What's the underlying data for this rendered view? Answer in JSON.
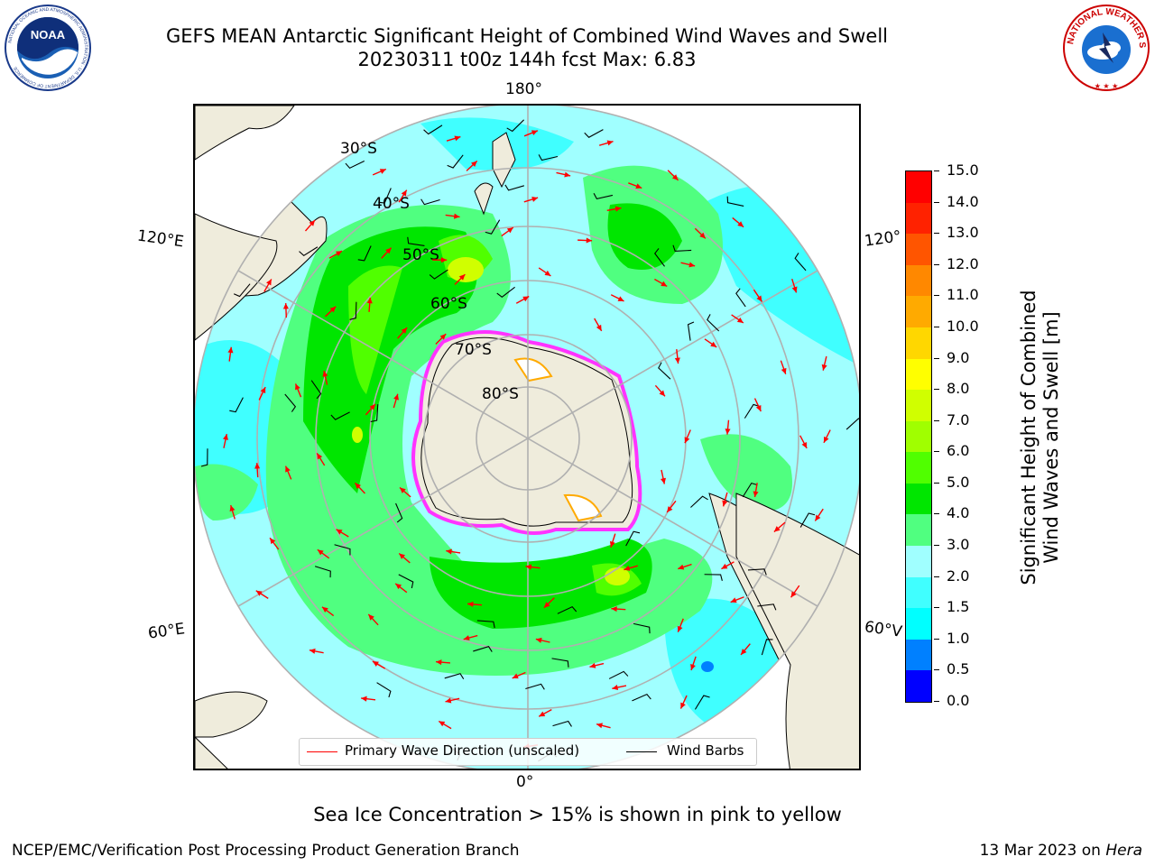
{
  "header": {
    "title_line1": "GEFS MEAN Antarctic Significant Height of Combined Wind Waves and Swell",
    "title_line2": "20230311 t00z 144h fcst   Max: 6.83"
  },
  "logos": {
    "noaa": "NOAA",
    "noaa_ring": "NATIONAL OCEANIC AND ATMOSPHERIC ADMINISTRATION · U.S. DEPARTMENT OF COMMERCE",
    "nws_ring": "NATIONAL WEATHER SERVICE"
  },
  "map": {
    "projection": "south-polar-stereographic",
    "longitude_labels": {
      "top": "180°",
      "bottom": "0°",
      "upper_left": "120°E",
      "upper_right": "120°",
      "lower_left": "60°E",
      "lower_right": "60°V"
    },
    "latitude_labels": [
      "30°S",
      "40°S",
      "50°S",
      "60°S",
      "70°S",
      "80°S"
    ],
    "colors": {
      "land": "#efecdc",
      "antarctica": "#efecdc",
      "gridline": "#b0b0b0",
      "coast": "#000000",
      "sea_ice_edge": "#ff33ff"
    },
    "legend": {
      "wave_label": "Primary Wave Direction (unscaled)",
      "wave_color": "#ff0000",
      "wind_label": "Wind Barbs",
      "wind_color": "#000000"
    }
  },
  "colorbar": {
    "label_line1": "Significant Height of Combined",
    "label_line2": "Wind Waves and Swell [m]",
    "ticks": [
      "0.0",
      "0.5",
      "1.0",
      "1.5",
      "2.0",
      "3.0",
      "4.0",
      "5.0",
      "6.0",
      "7.0",
      "8.0",
      "9.0",
      "10.0",
      "11.0",
      "12.0",
      "13.0",
      "14.0",
      "15.0"
    ],
    "colors": [
      "#0000ff",
      "#0080ff",
      "#00ffff",
      "#40ffff",
      "#a0ffff",
      "#50ff80",
      "#00e600",
      "#50ff00",
      "#a0ff00",
      "#d0ff00",
      "#ffff00",
      "#ffd700",
      "#ffaa00",
      "#ff8800",
      "#ff5500",
      "#ff2200",
      "#ff0000"
    ]
  },
  "footer": {
    "note": "Sea Ice Concentration > 15% is shown in pink to yellow",
    "producer": "NCEP/EMC/Verification Post Processing Product Generation Branch",
    "date": "13 Mar 2023 on ",
    "machine": "Hera"
  }
}
